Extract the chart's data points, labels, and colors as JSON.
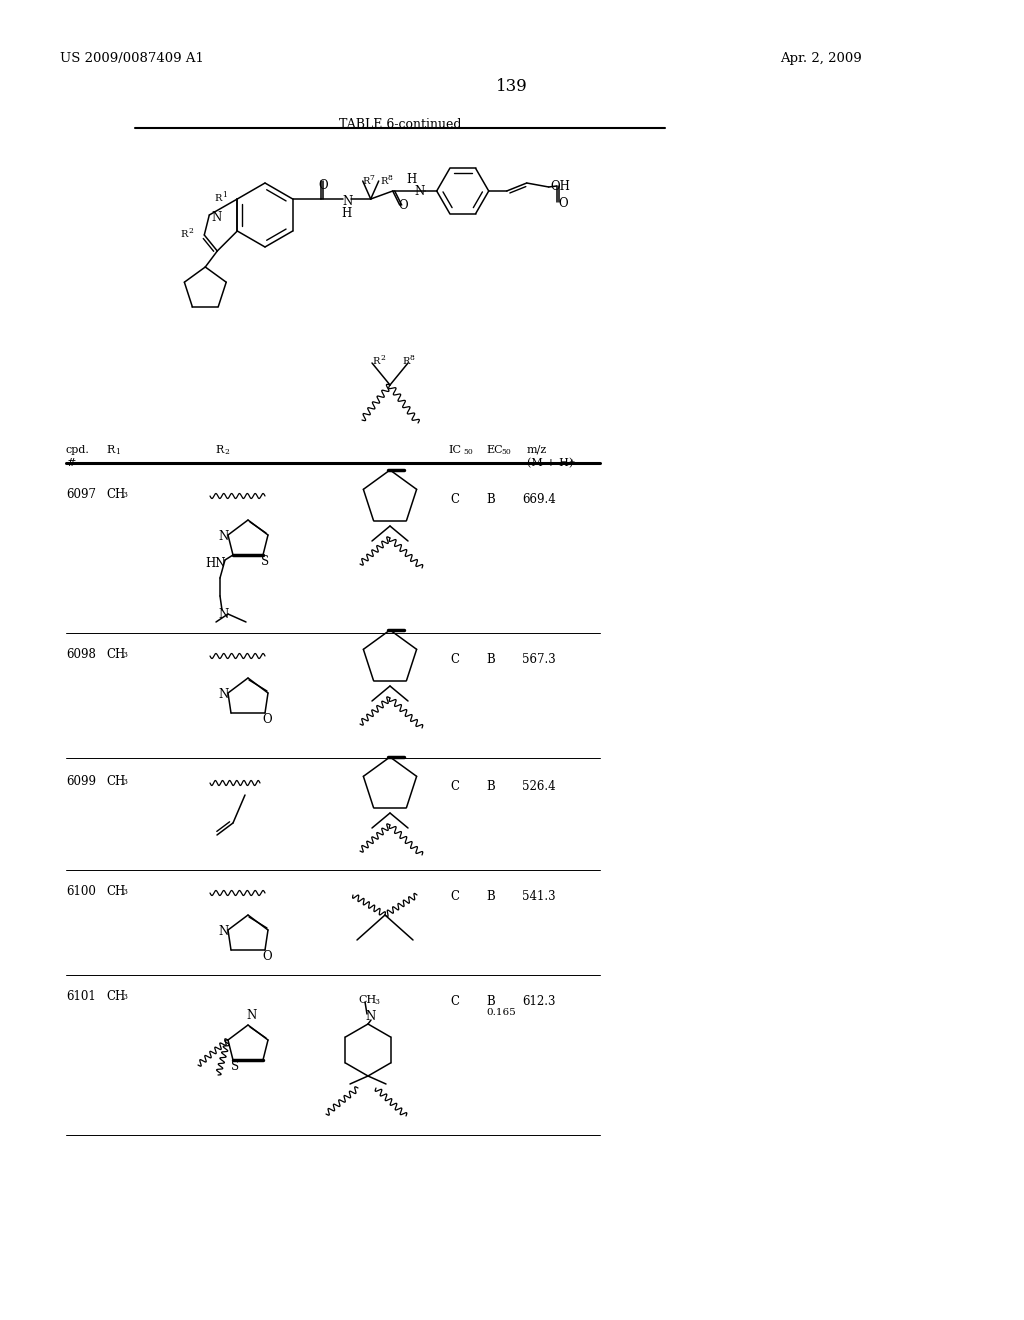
{
  "page_number": "139",
  "patent_number": "US 2009/0087409 A1",
  "patent_date": "Apr. 2, 2009",
  "table_title": "TABLE 6-continued",
  "background_color": "#ffffff",
  "rows": [
    {
      "cpd": "6097",
      "R1": "CH3",
      "IC50": "C",
      "EC50": "B",
      "mz": "669.4"
    },
    {
      "cpd": "6098",
      "R1": "CH3",
      "IC50": "C",
      "EC50": "B",
      "mz": "567.3"
    },
    {
      "cpd": "6099",
      "R1": "CH3",
      "IC50": "C",
      "EC50": "B",
      "mz": "526.4"
    },
    {
      "cpd": "6100",
      "R1": "CH3",
      "IC50": "C",
      "EC50": "B",
      "mz": "541.3"
    },
    {
      "cpd": "6101",
      "R1": "CH3",
      "IC50": "C",
      "EC50": "B",
      "mz": "612.3",
      "EC50_sub": "0.165"
    }
  ]
}
